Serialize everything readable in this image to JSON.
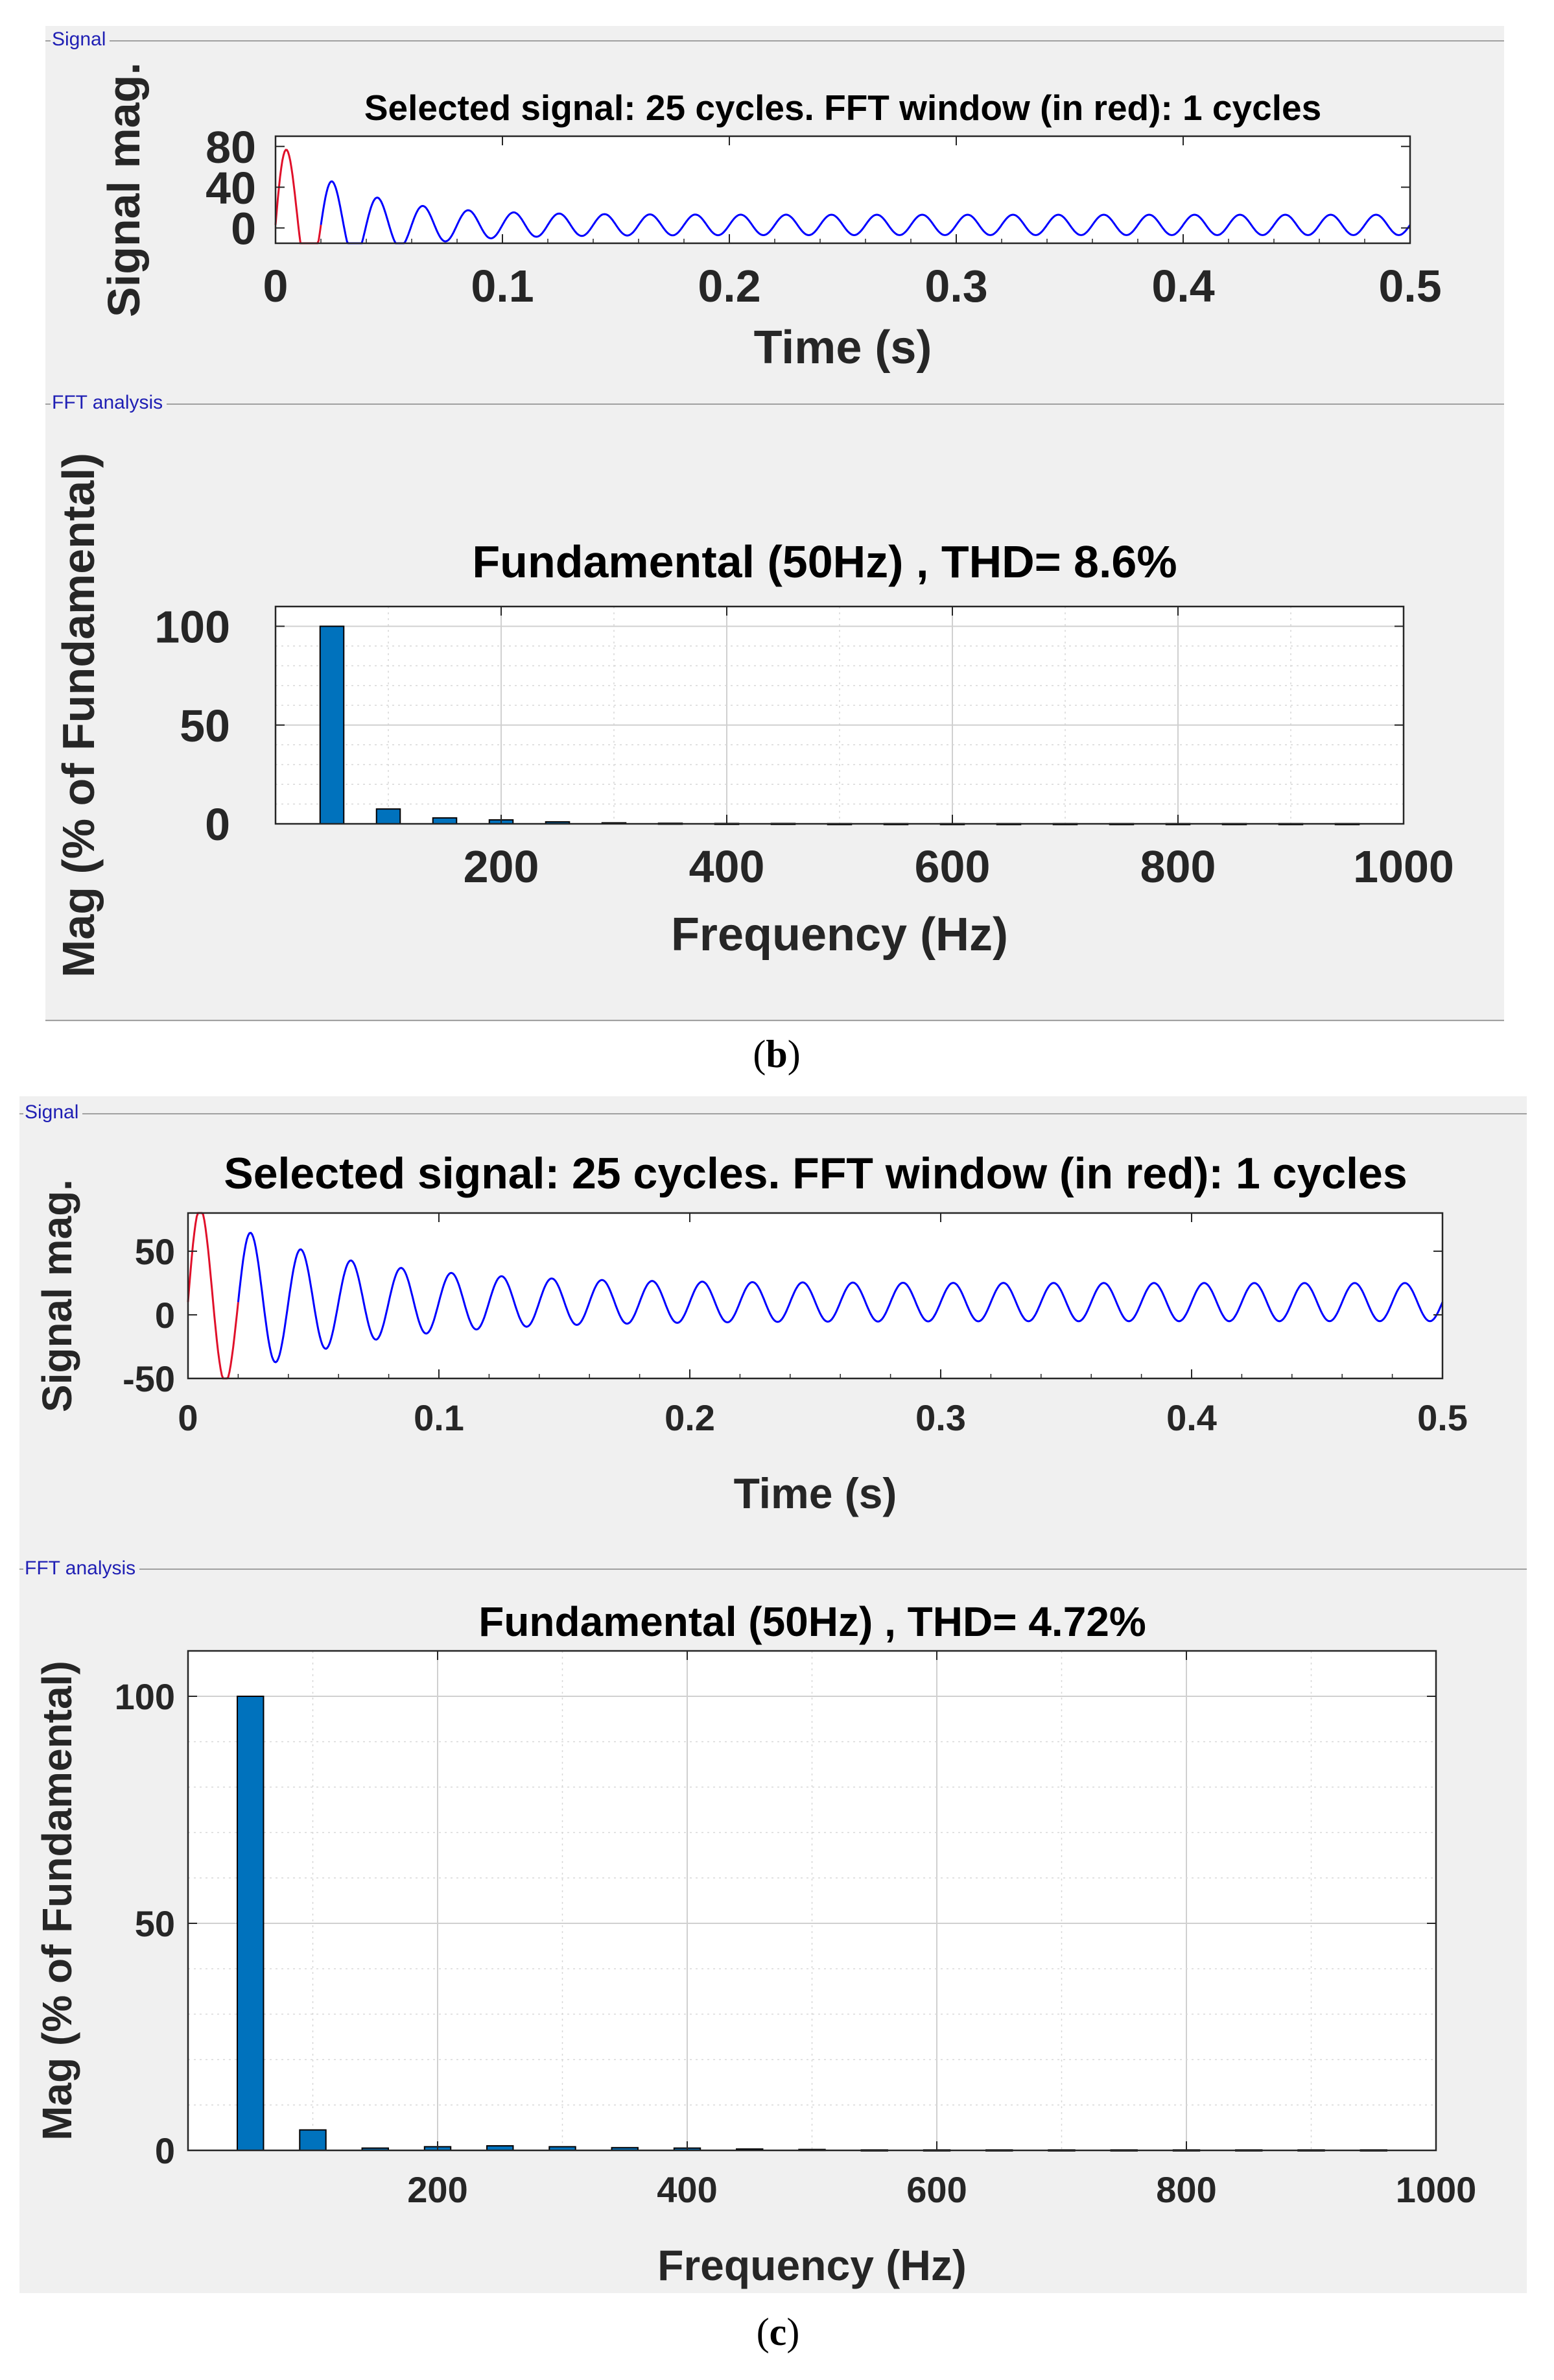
{
  "figure_b": {
    "caption_letter": "b",
    "signal_group_title": "Signal",
    "fft_group_title": "FFT analysis"
  },
  "figure_c": {
    "caption_letter": "c",
    "signal_group_title": "Signal",
    "fft_group_title": "FFT analysis"
  },
  "colors": {
    "signal_line": "#0000ff",
    "fft_window_line": "#e0102a",
    "bar_fill": "#0072bd",
    "panel_bg": "#f0f0f0",
    "group_title": "#1f1fb4"
  },
  "chart_data": [
    {
      "id": "b-signal",
      "type": "line",
      "title": "Selected signal: 25 cycles. FFT window (in red): 1 cycles",
      "xlabel": "Time (s)",
      "ylabel": "Signal mag.",
      "xlim": [
        0,
        0.5
      ],
      "ylim": [
        -15,
        90
      ],
      "xticks": [
        0,
        0.1,
        0.2,
        0.3,
        0.4,
        0.5
      ],
      "xtick_labels": [
        "0",
        "0.1",
        "0.2",
        "0.3",
        "0.4",
        "0.5"
      ],
      "yticks": [
        0,
        40,
        80
      ],
      "ytick_labels": [
        "0",
        "40",
        "80"
      ],
      "grid": false,
      "frequency_hz": 50,
      "fft_window_end_s": 0.02,
      "signal": {
        "offset": 3,
        "initial_amplitude": 85,
        "steady_amplitude": 10,
        "decay_time_constant_s": 0.03
      },
      "series": [
        {
          "name": "FFT window",
          "x_range": [
            0,
            0.02
          ]
        },
        {
          "name": "Selected signal",
          "x_range": [
            0.02,
            0.5
          ]
        }
      ]
    },
    {
      "id": "b-fft",
      "type": "bar",
      "title": "Fundamental (50Hz)  , THD= 8.6%",
      "xlabel": "Frequency (Hz)",
      "ylabel": "Mag (% of Fundamental)",
      "xlim": [
        0,
        1000
      ],
      "ylim": [
        0,
        110
      ],
      "xticks": [
        200,
        400,
        600,
        800,
        1000
      ],
      "xtick_labels": [
        "200",
        "400",
        "600",
        "800",
        "1000"
      ],
      "yticks": [
        0,
        50,
        100
      ],
      "ytick_labels": [
        "0",
        "50",
        "100"
      ],
      "grid": true,
      "x": [
        50,
        100,
        150,
        200,
        250,
        300,
        350,
        400,
        450,
        500,
        550,
        600,
        650,
        700,
        750,
        800,
        850,
        900,
        950
      ],
      "values": [
        100,
        7.5,
        3,
        2,
        1,
        0.5,
        0.3,
        0.2,
        0.2,
        0.1,
        0.1,
        0.1,
        0.1,
        0.1,
        0.1,
        0.1,
        0.1,
        0.1,
        0.1
      ]
    },
    {
      "id": "c-signal",
      "type": "line",
      "title": "Selected signal: 25 cycles. FFT window (in red): 1 cycles",
      "xlabel": "Time (s)",
      "ylabel": "Signal mag.",
      "xlim": [
        0,
        0.5
      ],
      "ylim": [
        -50,
        80
      ],
      "xticks": [
        0,
        0.1,
        0.2,
        0.3,
        0.4,
        0.5
      ],
      "xtick_labels": [
        "0",
        "0.1",
        "0.2",
        "0.3",
        "0.4",
        "0.5"
      ],
      "yticks": [
        -50,
        0,
        50
      ],
      "ytick_labels": [
        "-50",
        "0",
        "50"
      ],
      "grid": false,
      "frequency_hz": 50,
      "fft_window_end_s": 0.02,
      "signal": {
        "offset": 10,
        "initial_amplitude": 80,
        "steady_amplitude": 15,
        "decay_time_constant_s": 0.05
      },
      "series": [
        {
          "name": "FFT window",
          "x_range": [
            0,
            0.02
          ]
        },
        {
          "name": "Selected signal",
          "x_range": [
            0.02,
            0.5
          ]
        }
      ]
    },
    {
      "id": "c-fft",
      "type": "bar",
      "title": "Fundamental (50Hz) , THD= 4.72%",
      "xlabel": "Frequency (Hz)",
      "ylabel": "Mag (% of Fundamental)",
      "xlim": [
        0,
        1000
      ],
      "ylim": [
        0,
        110
      ],
      "xticks": [
        200,
        400,
        600,
        800,
        1000
      ],
      "xtick_labels": [
        "200",
        "400",
        "600",
        "800",
        "1000"
      ],
      "yticks": [
        0,
        50,
        100
      ],
      "ytick_labels": [
        "0",
        "50",
        "100"
      ],
      "grid": true,
      "x": [
        50,
        100,
        150,
        200,
        250,
        300,
        350,
        400,
        450,
        500,
        550,
        600,
        650,
        700,
        750,
        800,
        850,
        900,
        950
      ],
      "values": [
        100,
        4.5,
        0.5,
        0.8,
        1,
        0.8,
        0.6,
        0.5,
        0.3,
        0.2,
        0.1,
        0.1,
        0.1,
        0.1,
        0.1,
        0.1,
        0.1,
        0.1,
        0.1
      ]
    }
  ]
}
